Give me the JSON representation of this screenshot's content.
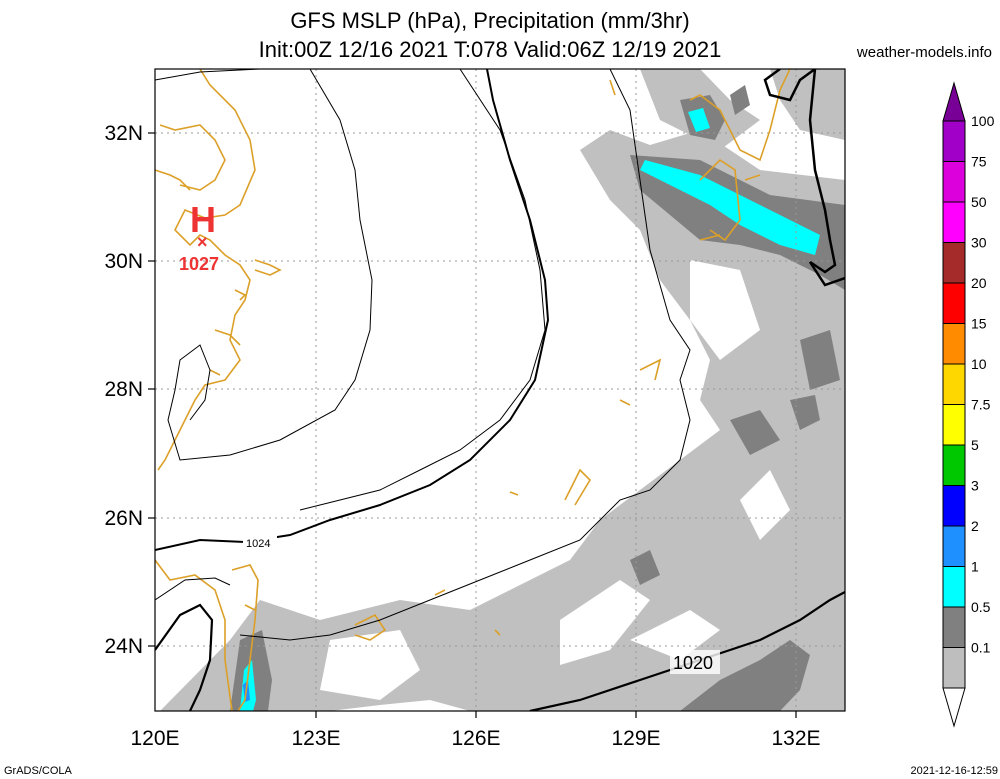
{
  "header": {
    "title_line1": "GFS MSLP (hPa), Precipitation (mm/3hr)",
    "title_line2": "Init:00Z 12/16 2021 T:078 Valid:06Z 12/19 2021",
    "site": "weather-models.info"
  },
  "footer": {
    "left": "GrADS/COLA",
    "right": "2021-12-16-12:59"
  },
  "axes": {
    "lon_labels": [
      "120E",
      "123E",
      "126E",
      "129E",
      "132E"
    ],
    "lat_labels": [
      "32N",
      "30N",
      "28N",
      "26N",
      "24N"
    ]
  },
  "pressure_center": {
    "symbol": "H",
    "value": "1027",
    "color": "#ee3333"
  },
  "isobar_labels": [
    "1024",
    "1020"
  ],
  "colorbar": {
    "levels": [
      "100",
      "75",
      "50",
      "30",
      "20",
      "15",
      "10",
      "7.5",
      "5",
      "3",
      "2",
      "1",
      "0.5",
      "0.1"
    ],
    "colors": [
      "#a000c8",
      "#dc00dc",
      "#ff00ff",
      "#a52a2a",
      "#ff0000",
      "#ff8c00",
      "#ffd700",
      "#ffff00",
      "#00c800",
      "#0000ff",
      "#1e90ff",
      "#00ffff",
      "#808080",
      "#bebebe"
    ]
  },
  "colors": {
    "coast": "#dca028",
    "precip_light": "#c0c0c0",
    "precip_mid": "#808080",
    "precip_high": "#00ffff",
    "precip_blue": "#1e90ff"
  }
}
